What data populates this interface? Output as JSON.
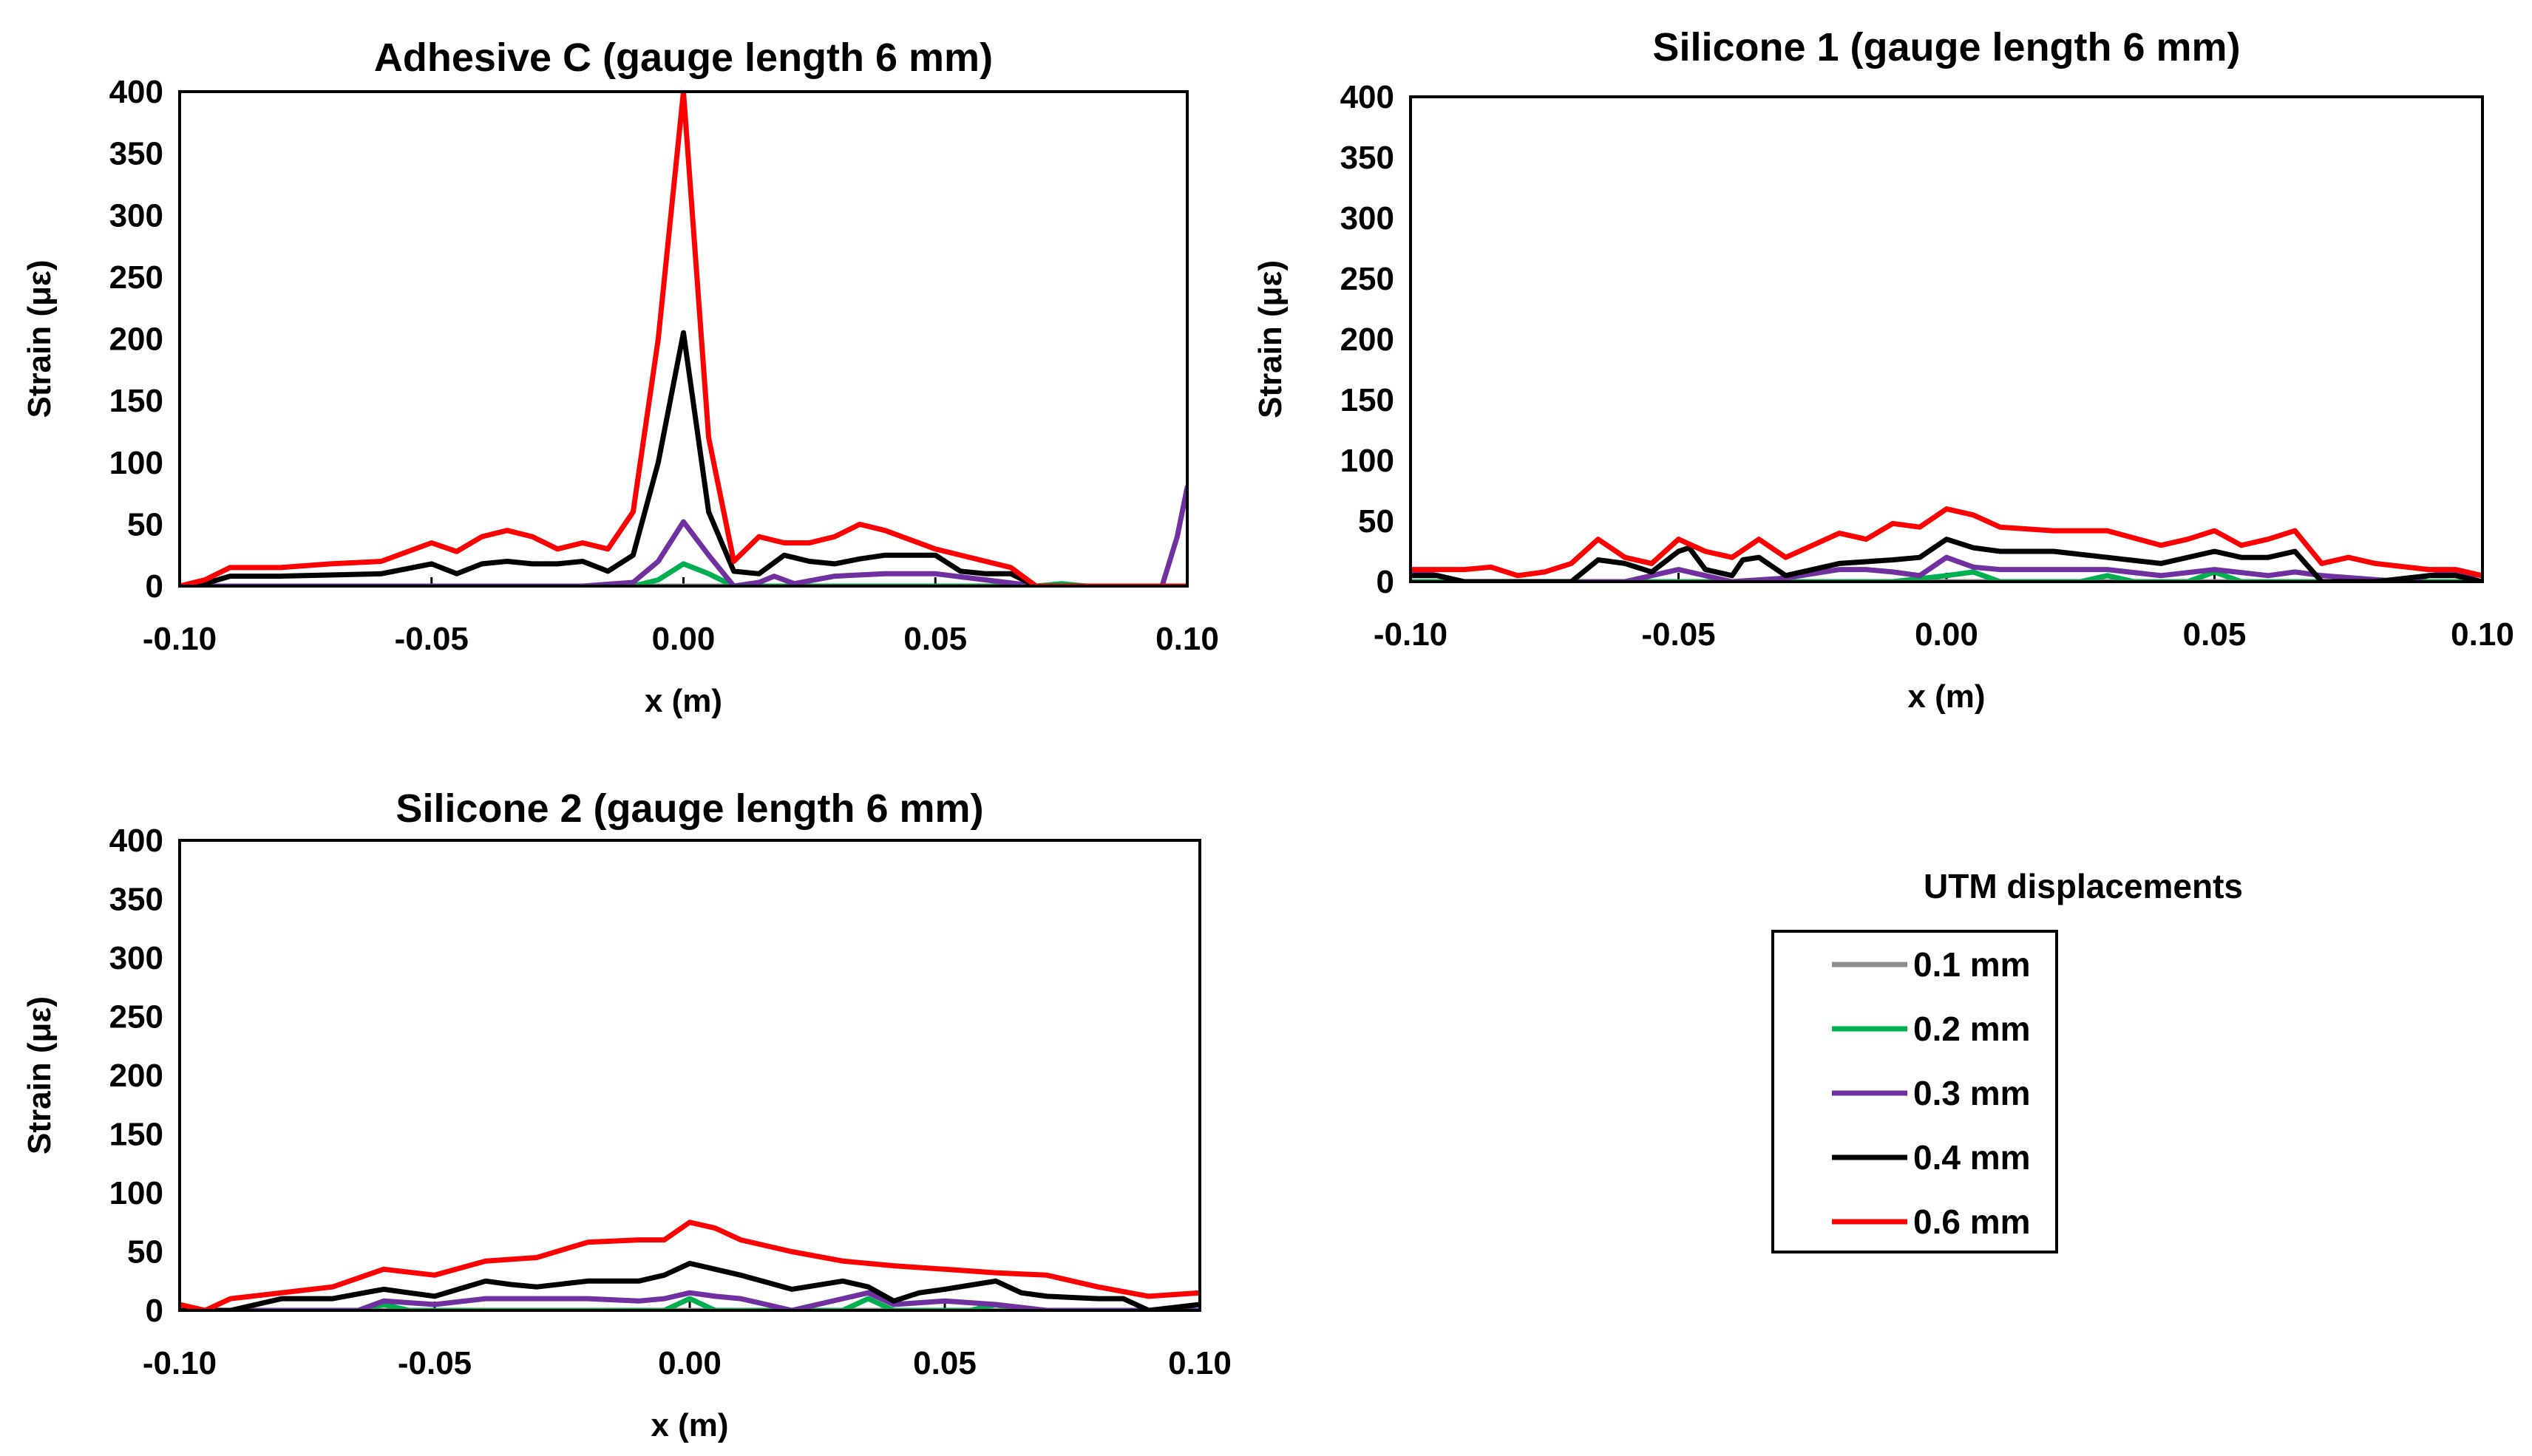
{
  "legend": {
    "title": "UTM displacements",
    "entries": [
      {
        "label": "0.1 mm",
        "color": "#8c8c8c"
      },
      {
        "label": "0.2 mm",
        "color": "#00b050"
      },
      {
        "label": "0.3 mm",
        "color": "#7030a0"
      },
      {
        "label": "0.4 mm",
        "color": "#000000"
      },
      {
        "label": "0.6 mm",
        "color": "#ff0000"
      }
    ]
  },
  "chart_data": [
    {
      "type": "line",
      "title": "Adhesive C (gauge length 6 mm)",
      "xlabel": "x (m)",
      "ylabel": "Strain (με)",
      "xlim": [
        -0.1,
        0.1
      ],
      "ylim": [
        0,
        400
      ],
      "xticks": [
        "-0.10",
        "-0.05",
        "0.00",
        "0.05",
        "0.10"
      ],
      "yticks": [
        "0",
        "50",
        "100",
        "150",
        "200",
        "250",
        "300",
        "350",
        "400"
      ],
      "series": [
        {
          "name": "0.1 mm",
          "color": "#8c8c8c",
          "x": [
            -0.1,
            0.1
          ],
          "y": [
            0,
            0
          ]
        },
        {
          "name": "0.2 mm",
          "color": "#00b050",
          "x": [
            -0.1,
            -0.01,
            -0.005,
            0.0,
            0.005,
            0.01,
            0.02,
            0.05,
            0.07,
            0.075,
            0.08,
            0.1
          ],
          "y": [
            0,
            0,
            5,
            18,
            10,
            0,
            0,
            0,
            0,
            2,
            0,
            0
          ]
        },
        {
          "name": "0.3 mm",
          "color": "#7030a0",
          "x": [
            -0.1,
            -0.02,
            -0.01,
            -0.005,
            0.0,
            0.005,
            0.01,
            0.015,
            0.018,
            0.022,
            0.03,
            0.04,
            0.05,
            0.06,
            0.07,
            0.095,
            0.098,
            0.1
          ],
          "y": [
            0,
            0,
            3,
            20,
            52,
            25,
            0,
            3,
            8,
            2,
            8,
            10,
            10,
            5,
            0,
            0,
            40,
            80
          ]
        },
        {
          "name": "0.4 mm",
          "color": "#000000",
          "x": [
            -0.1,
            -0.095,
            -0.09,
            -0.08,
            -0.06,
            -0.05,
            -0.045,
            -0.04,
            -0.035,
            -0.03,
            -0.025,
            -0.02,
            -0.015,
            -0.01,
            -0.005,
            0.0,
            0.005,
            0.01,
            0.015,
            0.02,
            0.025,
            0.03,
            0.035,
            0.04,
            0.05,
            0.055,
            0.06,
            0.065,
            0.07,
            0.1
          ],
          "y": [
            0,
            2,
            8,
            8,
            10,
            18,
            10,
            18,
            20,
            18,
            18,
            20,
            12,
            25,
            100,
            205,
            60,
            12,
            10,
            25,
            20,
            18,
            22,
            25,
            25,
            12,
            10,
            10,
            0,
            0
          ]
        },
        {
          "name": "0.6 mm",
          "color": "#ff0000",
          "x": [
            -0.1,
            -0.095,
            -0.09,
            -0.08,
            -0.07,
            -0.06,
            -0.05,
            -0.045,
            -0.04,
            -0.035,
            -0.03,
            -0.025,
            -0.02,
            -0.015,
            -0.01,
            -0.005,
            0.0,
            0.005,
            0.01,
            0.015,
            0.02,
            0.025,
            0.03,
            0.035,
            0.04,
            0.05,
            0.06,
            0.065,
            0.07,
            0.1
          ],
          "y": [
            0,
            5,
            15,
            15,
            18,
            20,
            35,
            28,
            40,
            45,
            40,
            30,
            35,
            30,
            60,
            200,
            400,
            120,
            20,
            40,
            35,
            35,
            40,
            50,
            45,
            30,
            20,
            15,
            0,
            0
          ]
        }
      ]
    },
    {
      "type": "line",
      "title": "Silicone 1 (gauge length 6 mm)",
      "xlabel": "x (m)",
      "ylabel": "Strain (με)",
      "xlim": [
        -0.1,
        0.1
      ],
      "ylim": [
        0,
        400
      ],
      "xticks": [
        "-0.10",
        "-0.05",
        "0.00",
        "0.05",
        "0.10"
      ],
      "yticks": [
        "0",
        "50",
        "100",
        "150",
        "200",
        "250",
        "300",
        "350",
        "400"
      ],
      "series": [
        {
          "name": "0.1 mm",
          "color": "#8c8c8c",
          "x": [
            -0.1,
            0.1
          ],
          "y": [
            0,
            0
          ]
        },
        {
          "name": "0.2 mm",
          "color": "#00b050",
          "x": [
            -0.1,
            -0.01,
            0.0,
            0.005,
            0.01,
            0.025,
            0.03,
            0.035,
            0.045,
            0.05,
            0.055,
            0.1
          ],
          "y": [
            0,
            0,
            5,
            8,
            0,
            0,
            5,
            0,
            0,
            8,
            0,
            0
          ]
        },
        {
          "name": "0.3 mm",
          "color": "#7030a0",
          "x": [
            -0.1,
            -0.095,
            -0.09,
            -0.06,
            -0.05,
            -0.045,
            -0.04,
            -0.03,
            -0.02,
            -0.015,
            -0.01,
            -0.005,
            0.0,
            0.005,
            0.01,
            0.02,
            0.03,
            0.04,
            0.05,
            0.06,
            0.065,
            0.07,
            0.085,
            0.09,
            0.095,
            0.1
          ],
          "y": [
            10,
            5,
            0,
            0,
            10,
            5,
            0,
            3,
            10,
            10,
            8,
            5,
            20,
            12,
            10,
            10,
            10,
            5,
            10,
            5,
            8,
            5,
            0,
            5,
            8,
            5
          ]
        },
        {
          "name": "0.4 mm",
          "color": "#000000",
          "x": [
            -0.1,
            -0.095,
            -0.09,
            -0.07,
            -0.065,
            -0.06,
            -0.055,
            -0.05,
            -0.048,
            -0.045,
            -0.04,
            -0.038,
            -0.035,
            -0.03,
            -0.02,
            -0.01,
            -0.005,
            0.0,
            0.005,
            0.01,
            0.02,
            0.03,
            0.04,
            0.05,
            0.055,
            0.06,
            0.065,
            0.07,
            0.08,
            0.09,
            0.095,
            0.1
          ],
          "y": [
            5,
            5,
            0,
            0,
            18,
            15,
            8,
            25,
            28,
            10,
            5,
            18,
            20,
            5,
            15,
            18,
            20,
            35,
            28,
            25,
            25,
            20,
            15,
            25,
            20,
            20,
            25,
            0,
            0,
            5,
            5,
            0
          ]
        },
        {
          "name": "0.6 mm",
          "color": "#ff0000",
          "x": [
            -0.1,
            -0.09,
            -0.085,
            -0.08,
            -0.075,
            -0.07,
            -0.065,
            -0.06,
            -0.055,
            -0.05,
            -0.045,
            -0.04,
            -0.035,
            -0.03,
            -0.025,
            -0.02,
            -0.015,
            -0.01,
            -0.005,
            0.0,
            0.005,
            0.01,
            0.02,
            0.03,
            0.04,
            0.045,
            0.05,
            0.055,
            0.06,
            0.065,
            0.07,
            0.075,
            0.08,
            0.09,
            0.095,
            0.1
          ],
          "y": [
            10,
            10,
            12,
            5,
            8,
            15,
            35,
            20,
            15,
            35,
            25,
            20,
            35,
            20,
            30,
            40,
            35,
            48,
            45,
            60,
            55,
            45,
            42,
            42,
            30,
            35,
            42,
            30,
            35,
            42,
            15,
            20,
            15,
            10,
            10,
            5
          ]
        }
      ]
    },
    {
      "type": "line",
      "title": "Silicone 2 (gauge length 6 mm)",
      "xlabel": "x (m)",
      "ylabel": "Strain (με)",
      "xlim": [
        -0.1,
        0.1
      ],
      "ylim": [
        0,
        400
      ],
      "xticks": [
        "-0.10",
        "-0.05",
        "0.00",
        "0.05",
        "0.10"
      ],
      "yticks": [
        "0",
        "50",
        "100",
        "150",
        "200",
        "250",
        "300",
        "350",
        "400"
      ],
      "series": [
        {
          "name": "0.1 mm",
          "color": "#8c8c8c",
          "x": [
            -0.1,
            0.1
          ],
          "y": [
            0,
            0
          ]
        },
        {
          "name": "0.2 mm",
          "color": "#00b050",
          "x": [
            -0.1,
            -0.065,
            -0.06,
            -0.055,
            -0.005,
            0.0,
            0.005,
            0.03,
            0.035,
            0.04,
            0.055,
            0.06,
            0.065,
            0.1
          ],
          "y": [
            0,
            0,
            5,
            0,
            0,
            10,
            0,
            0,
            10,
            0,
            0,
            5,
            0,
            0
          ]
        },
        {
          "name": "0.3 mm",
          "color": "#7030a0",
          "x": [
            -0.1,
            -0.065,
            -0.06,
            -0.05,
            -0.04,
            -0.02,
            -0.01,
            -0.005,
            0.0,
            0.005,
            0.01,
            0.015,
            0.02,
            0.03,
            0.035,
            0.04,
            0.05,
            0.06,
            0.07,
            0.1
          ],
          "y": [
            0,
            0,
            8,
            5,
            10,
            10,
            8,
            10,
            15,
            12,
            10,
            5,
            0,
            10,
            15,
            5,
            8,
            5,
            0,
            0
          ]
        },
        {
          "name": "0.4 mm",
          "color": "#000000",
          "x": [
            -0.1,
            -0.09,
            -0.08,
            -0.07,
            -0.06,
            -0.055,
            -0.05,
            -0.04,
            -0.035,
            -0.03,
            -0.02,
            -0.01,
            -0.005,
            0.0,
            0.005,
            0.01,
            0.02,
            0.03,
            0.035,
            0.04,
            0.045,
            0.05,
            0.06,
            0.065,
            0.07,
            0.08,
            0.085,
            0.09,
            0.1
          ],
          "y": [
            0,
            0,
            10,
            10,
            18,
            15,
            12,
            25,
            22,
            20,
            25,
            25,
            30,
            40,
            35,
            30,
            18,
            25,
            20,
            8,
            15,
            18,
            25,
            15,
            12,
            10,
            10,
            0,
            5
          ]
        },
        {
          "name": "0.6 mm",
          "color": "#ff0000",
          "x": [
            -0.1,
            -0.095,
            -0.09,
            -0.08,
            -0.07,
            -0.06,
            -0.05,
            -0.04,
            -0.03,
            -0.02,
            -0.01,
            -0.005,
            0.0,
            0.005,
            0.01,
            0.02,
            0.03,
            0.04,
            0.05,
            0.06,
            0.07,
            0.08,
            0.09,
            0.1
          ],
          "y": [
            5,
            0,
            10,
            15,
            20,
            35,
            30,
            42,
            45,
            58,
            60,
            60,
            75,
            70,
            60,
            50,
            42,
            38,
            35,
            32,
            30,
            20,
            12,
            15
          ]
        }
      ]
    }
  ]
}
